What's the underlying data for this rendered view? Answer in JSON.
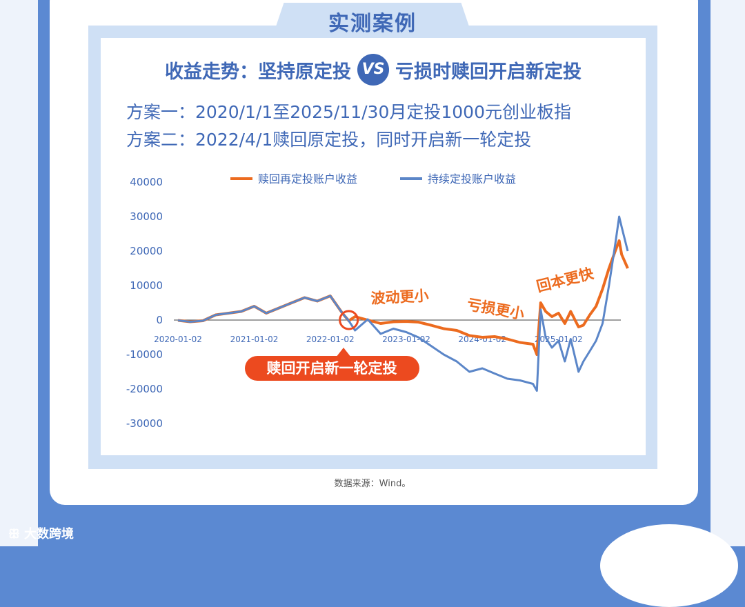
{
  "header": {
    "tab_title": "实测案例",
    "headline_left": "收益走势：坚持原定投",
    "vs_label": "VS",
    "headline_right": "亏损时赎回开启新定投",
    "plan_1": "方案一：2020/1/1至2025/11/30月定投1000元创业板指",
    "plan_2": "方案二：2022/4/1赎回原定投，同时开启新一轮定投"
  },
  "footer": {
    "source": "数据来源：Wind。",
    "watermark": "大数跨境"
  },
  "colors": {
    "redeem_series": "#ec6b1f",
    "continue_series": "#5b86c8",
    "accent_blue": "#3f68b6",
    "annotation_red": "#ec4a1f",
    "frame": "#cfe0f5"
  },
  "chart_data": {
    "type": "line",
    "title": "",
    "xlabel": "",
    "ylabel": "",
    "ylim": [
      -30000,
      40000
    ],
    "yticks": [
      "40000",
      "30000",
      "20000",
      "10000",
      "0",
      "-10000",
      "-20000",
      "-30000"
    ],
    "xticks": [
      "2020-01-02",
      "2021-01-02",
      "2022-01-02",
      "2023-01-02",
      "2024-01-02",
      "2025-01-02"
    ],
    "legend_position": "top-center",
    "grid": false,
    "x": [
      "2020-01-02",
      "2020-03-01",
      "2020-05-01",
      "2020-07-01",
      "2020-09-01",
      "2020-11-01",
      "2021-01-02",
      "2021-03-01",
      "2021-05-01",
      "2021-07-01",
      "2021-09-01",
      "2021-11-01",
      "2022-01-02",
      "2022-03-01",
      "2022-04-01",
      "2022-05-01",
      "2022-07-01",
      "2022-09-01",
      "2022-11-01",
      "2023-01-02",
      "2023-03-01",
      "2023-05-01",
      "2023-07-01",
      "2023-09-01",
      "2023-11-01",
      "2024-01-02",
      "2024-03-01",
      "2024-05-01",
      "2024-07-01",
      "2024-09-01",
      "2024-09-20",
      "2024-10-08",
      "2024-11-01",
      "2024-12-01",
      "2025-01-02",
      "2025-02-01",
      "2025-03-01",
      "2025-04-08",
      "2025-05-01",
      "2025-06-01",
      "2025-07-01",
      "2025-08-01",
      "2025-09-01",
      "2025-10-01",
      "2025-10-20",
      "2025-11-01",
      "2025-11-30"
    ],
    "series": [
      {
        "name": "赎回再定投账户收益",
        "values": [
          -100,
          -500,
          -200,
          1500,
          2000,
          2500,
          4000,
          2000,
          3500,
          5000,
          6500,
          5500,
          7000,
          2000,
          -200,
          1000,
          0,
          -1000,
          -500,
          -400,
          -600,
          -1500,
          -2500,
          -3000,
          -4500,
          -5000,
          -4800,
          -5500,
          -6500,
          -7000,
          -10000,
          5000,
          2500,
          1000,
          2000,
          -1000,
          2500,
          -2000,
          -1500,
          1500,
          4000,
          9000,
          15000,
          20000,
          23000,
          19000,
          15000
        ]
      },
      {
        "name": "持续定投账户收益",
        "values": [
          -100,
          -500,
          -200,
          1500,
          2000,
          2500,
          4000,
          2000,
          3500,
          5000,
          6500,
          5500,
          7000,
          2000,
          -200,
          -3000,
          200,
          -4000,
          -2500,
          -3500,
          -5000,
          -7500,
          -10000,
          -12000,
          -15000,
          -14000,
          -15500,
          -17000,
          -17500,
          -18500,
          -20500,
          3000,
          -5000,
          -8000,
          -6000,
          -12000,
          -5500,
          -15000,
          -12000,
          -9000,
          -6000,
          -1000,
          10000,
          22000,
          30000,
          27000,
          20000
        ]
      }
    ],
    "annotations": [
      "波动更小",
      "亏损更小",
      "回本更快",
      "赎回开启新一轮定投"
    ]
  }
}
